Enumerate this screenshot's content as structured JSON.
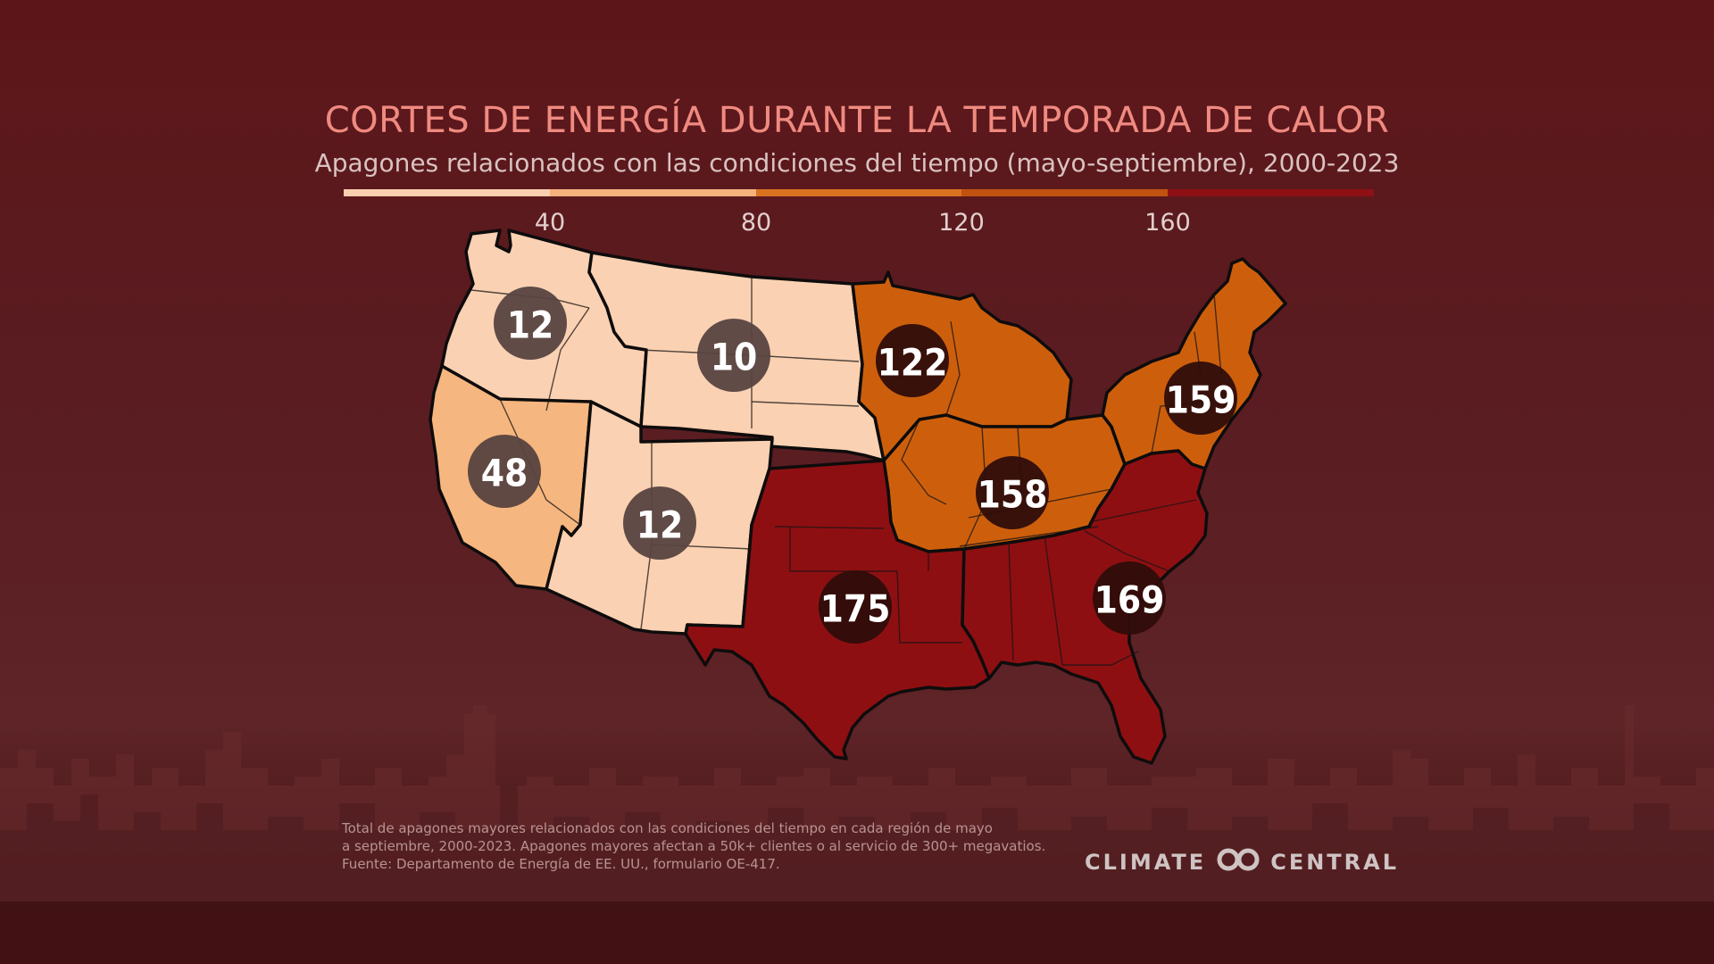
{
  "title": "CORTES DE ENERGÍA DURANTE LA TEMPORADA DE CALOR",
  "subtitle": "Apagones relacionados con las condiciones del tiempo (mayo-septiembre), 2000-2023",
  "legend": {
    "ticks": [
      "40",
      "80",
      "120",
      "160"
    ],
    "colors": [
      "#f9cfb0",
      "#f4b27c",
      "#d9731f",
      "#c2520f",
      "#8e1015"
    ]
  },
  "regions": [
    {
      "name": "Northwest",
      "value": "12",
      "color": "#fad1b2"
    },
    {
      "name": "Northern Rockies and Plains",
      "value": "10",
      "color": "#fad1b2"
    },
    {
      "name": "West",
      "value": "48",
      "color": "#f6b67f"
    },
    {
      "name": "Southwest",
      "value": "12",
      "color": "#fad1b2"
    },
    {
      "name": "Upper Midwest",
      "value": "122",
      "color": "#cd5f0c"
    },
    {
      "name": "Ohio Valley",
      "value": "158",
      "color": "#cd5f0c"
    },
    {
      "name": "Northeast",
      "value": "159",
      "color": "#cd5f0c"
    },
    {
      "name": "South",
      "value": "175",
      "color": "#8e0f12"
    },
    {
      "name": "Southeast",
      "value": "169",
      "color": "#8e0f12"
    }
  ],
  "badge_colors": {
    "light": "#574340",
    "dark": "#2f0d0b"
  },
  "footnote": [
    "Total de apagones mayores relacionados con las condiciones del tiempo en cada región de mayo",
    "a septiembre, 2000-2023. Apagones mayores afectan a 50k+ clientes o al servicio de 300+ megavatios.",
    "Fuente: Departamento de Energía de EE. UU., formulario OE-417."
  ],
  "logo": {
    "left": "CLIMATE",
    "right": "CENTRAL"
  }
}
